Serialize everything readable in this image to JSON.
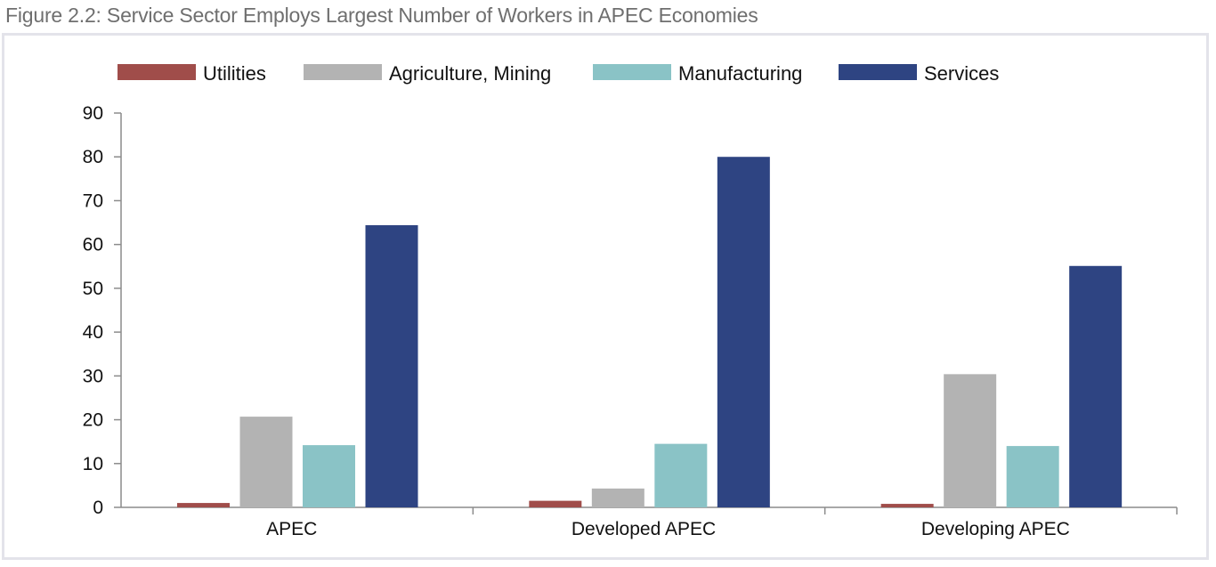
{
  "figure": {
    "title": "Figure 2.2: Service Sector Employs Largest Number of Workers in APEC Economies"
  },
  "chart_data": {
    "type": "bar",
    "categories": [
      "APEC",
      "Developed APEC",
      "Developing APEC"
    ],
    "series": [
      {
        "name": "Utilities",
        "color": "#a04d4a",
        "values": [
          1,
          1.5,
          0.8
        ]
      },
      {
        "name": "Agriculture, Mining",
        "color": "#b3b3b3",
        "values": [
          20.7,
          4.3,
          30.4
        ]
      },
      {
        "name": "Manufacturing",
        "color": "#8ac3c6",
        "values": [
          14.2,
          14.5,
          14
        ]
      },
      {
        "name": "Services",
        "color": "#2e4482",
        "values": [
          64.4,
          80,
          55.1
        ]
      }
    ],
    "yticks": [
      "0",
      "10",
      "20",
      "30",
      "40",
      "50",
      "60",
      "70",
      "80",
      "90"
    ],
    "ylim": [
      0,
      90
    ],
    "xlabel": "",
    "ylabel": "",
    "grid": false,
    "legend_position": "top"
  }
}
